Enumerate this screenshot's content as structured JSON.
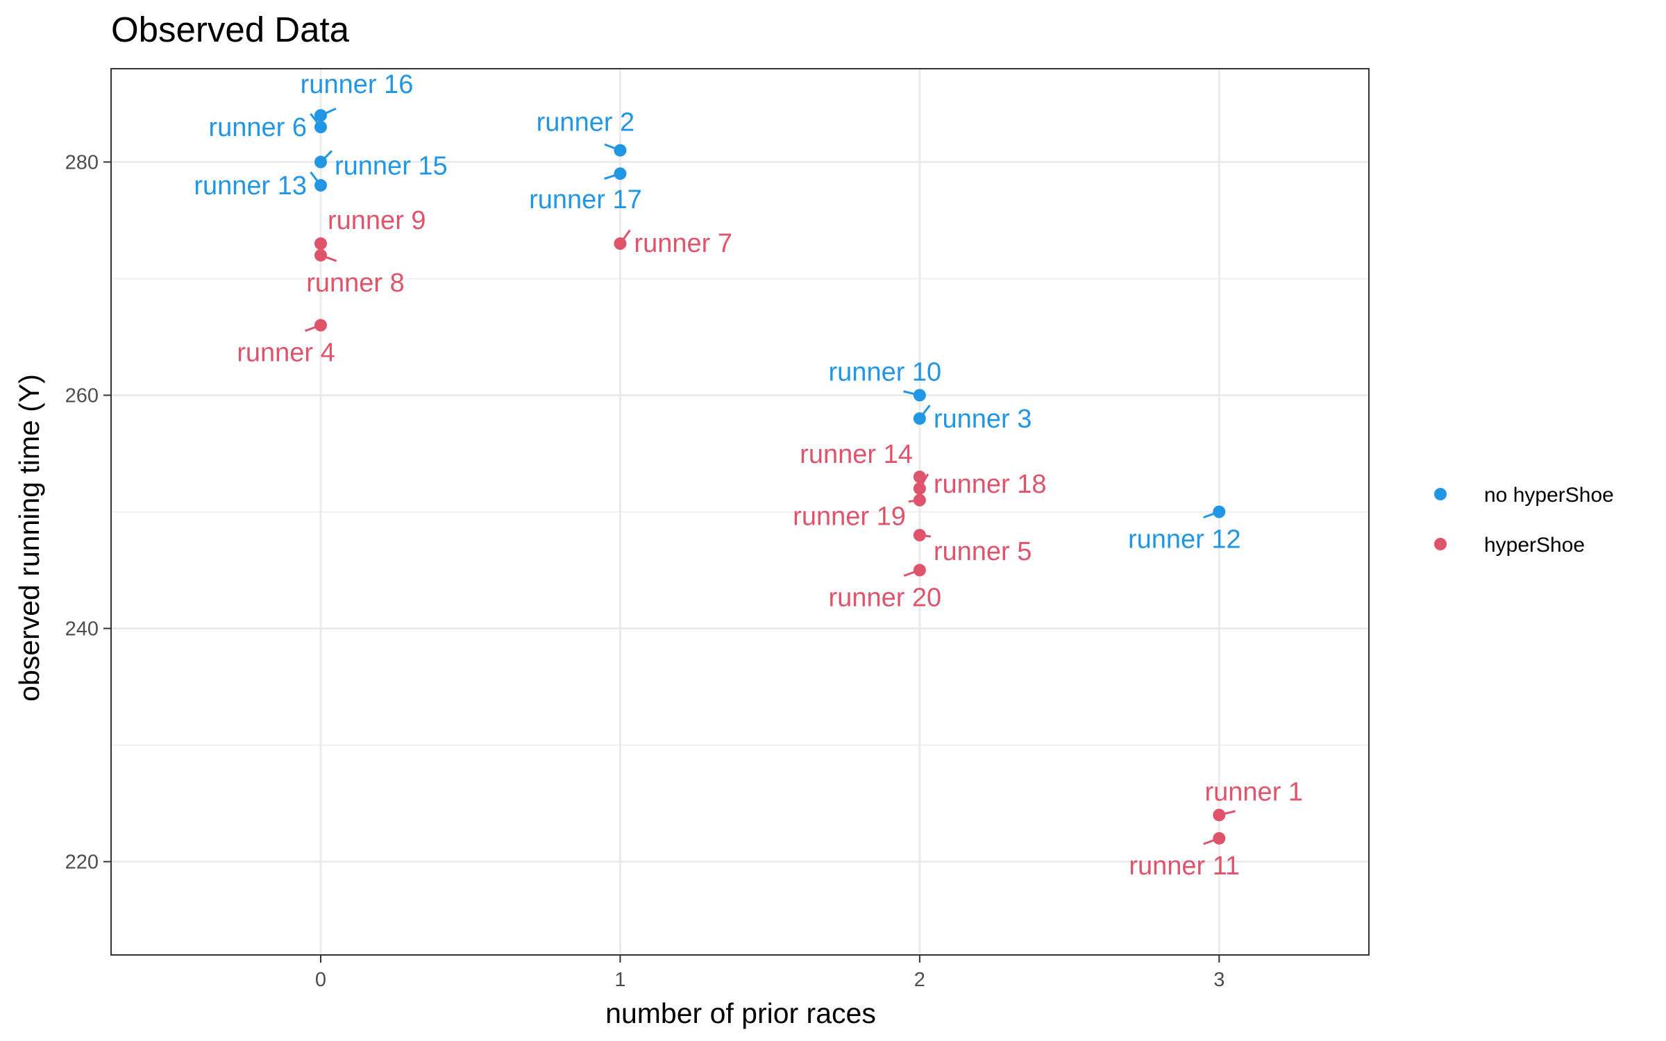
{
  "chart_data": {
    "type": "scatter",
    "title": "Observed Data",
    "xlabel": "number of prior races",
    "ylabel": "observed running time (Y)",
    "xlim": [
      -0.7,
      3.5
    ],
    "ylim": [
      212,
      288
    ],
    "x_ticks": [
      0,
      1,
      2,
      3
    ],
    "y_ticks": [
      220,
      240,
      260,
      280
    ],
    "x_tick_labels": [
      "0",
      "1",
      "2",
      "3"
    ],
    "y_tick_labels": [
      "220",
      "240",
      "260",
      "280"
    ],
    "grid": true,
    "legend_position": "right",
    "series": [
      {
        "name": "no hyperShoe",
        "color": "#2196e4",
        "points": [
          {
            "label": "runner 16",
            "x": 0,
            "y": 284
          },
          {
            "label": "runner 6",
            "x": 0,
            "y": 283
          },
          {
            "label": "runner 15",
            "x": 0,
            "y": 280
          },
          {
            "label": "runner 13",
            "x": 0,
            "y": 278
          },
          {
            "label": "runner 2",
            "x": 1,
            "y": 281
          },
          {
            "label": "runner 17",
            "x": 1,
            "y": 279
          },
          {
            "label": "runner 10",
            "x": 2,
            "y": 260
          },
          {
            "label": "runner 3",
            "x": 2,
            "y": 258
          },
          {
            "label": "runner 12",
            "x": 3,
            "y": 250
          }
        ]
      },
      {
        "name": "hyperShoe",
        "color": "#df536b",
        "points": [
          {
            "label": "runner 9",
            "x": 0,
            "y": 273
          },
          {
            "label": "runner 8",
            "x": 0,
            "y": 272
          },
          {
            "label": "runner 4",
            "x": 0,
            "y": 266
          },
          {
            "label": "runner 7",
            "x": 1,
            "y": 273
          },
          {
            "label": "runner 14",
            "x": 2,
            "y": 253
          },
          {
            "label": "runner 18",
            "x": 2,
            "y": 252
          },
          {
            "label": "runner 19",
            "x": 2,
            "y": 251
          },
          {
            "label": "runner 5",
            "x": 2,
            "y": 248
          },
          {
            "label": "runner 20",
            "x": 2,
            "y": 245
          },
          {
            "label": "runner 1",
            "x": 3,
            "y": 224
          },
          {
            "label": "runner 11",
            "x": 3,
            "y": 222
          }
        ]
      }
    ]
  }
}
